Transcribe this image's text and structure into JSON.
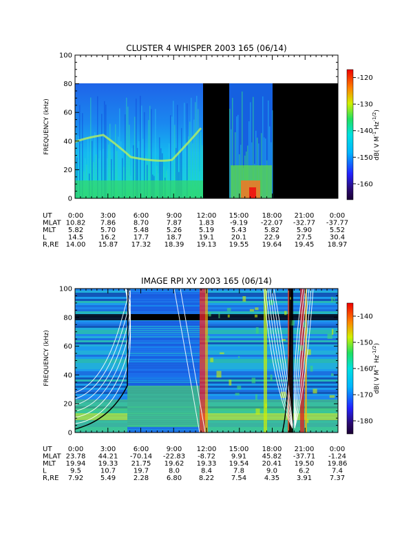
{
  "chart_data": [
    {
      "type": "heatmap",
      "title": "CLUSTER 4 WHISPER 2003 165 (06/14)",
      "ylabel": "FREQUENCY (kHz)",
      "ylim": [
        0,
        100
      ],
      "yticks": [
        "0",
        "20",
        "40",
        "60",
        "80",
        "100"
      ],
      "xlim_hours": [
        0,
        24
      ],
      "data_top_khz": 80,
      "data_gaps_hours": [
        [
          11.9,
          14.0
        ],
        [
          18.0,
          24.0
        ]
      ],
      "colorbar": {
        "label_parts": [
          "dB( V M",
          "-1",
          " Hz",
          "-1/2",
          ")"
        ],
        "ticks": [
          "-120",
          "-130",
          "-140",
          "-150",
          "-160"
        ],
        "range": [
          -166,
          -117
        ]
      },
      "ephemeris": {
        "labels": [
          "UT",
          "MLAT",
          "MLT",
          "L",
          "R,RE"
        ],
        "columns": [
          [
            "0:00",
            "10.82",
            "5.82",
            "14.5",
            "14.00"
          ],
          [
            "3:00",
            "7.86",
            "5.70",
            "16.2",
            "15.87"
          ],
          [
            "6:00",
            "8.70",
            "5.48",
            "17.7",
            "17.32"
          ],
          [
            "9:00",
            "7.87",
            "5.26",
            "18.7",
            "18.39"
          ],
          [
            "12:00",
            "1.83",
            "5.19",
            "19.1",
            "19.13"
          ],
          [
            "15:00",
            "-9.19",
            "5.43",
            "20.1",
            "19.55"
          ],
          [
            "18:00",
            "-22.07",
            "5.82",
            "22.9",
            "19.64"
          ],
          [
            "21:00",
            "-32.77",
            "5.90",
            "27.5",
            "19.45"
          ],
          [
            "0:00",
            "-37.77",
            "5.52",
            "30.4",
            "18.97"
          ]
        ]
      }
    },
    {
      "type": "heatmap",
      "title": "IMAGE RPI XY 2003 165 (06/14)",
      "ylabel": "FREQUENCY (kHz)",
      "ylim": [
        0,
        100
      ],
      "yticks": [
        "0",
        "20",
        "40",
        "60",
        "80",
        "100"
      ],
      "xlim_hours": [
        0,
        24
      ],
      "colorbar": {
        "label_parts": [
          "dB( V M",
          "-1",
          " Hz",
          "-1/2",
          ")"
        ],
        "ticks": [
          "-140",
          "-150",
          "-160",
          "-170",
          "-180"
        ],
        "range": [
          -185,
          -135
        ]
      },
      "ephemeris": {
        "labels": [
          "UT",
          "MLAT",
          "MLT",
          "L",
          "R,RE"
        ],
        "columns": [
          [
            "0:00",
            "23.78",
            "19.94",
            "9.5",
            "7.92"
          ],
          [
            "3:00",
            "44.21",
            "19.33",
            "10.7",
            "5.49"
          ],
          [
            "6:00",
            "-70.14",
            "21.75",
            "19.7",
            "2.28"
          ],
          [
            "9:00",
            "-22.83",
            "19.62",
            "8.0",
            "6.80"
          ],
          [
            "12:00",
            "-8.72",
            "19.33",
            "8.4",
            "8.22"
          ],
          [
            "15:00",
            "9.91",
            "19.54",
            "7.8",
            "7.54"
          ],
          [
            "18:00",
            "45.82",
            "20.41",
            "9.0",
            "4.35"
          ],
          [
            "21:00",
            "-37.71",
            "19.50",
            "6.2",
            "3.91"
          ],
          [
            "0:00",
            "-1.24",
            "19.86",
            "7.4",
            "7.37"
          ]
        ]
      }
    }
  ]
}
